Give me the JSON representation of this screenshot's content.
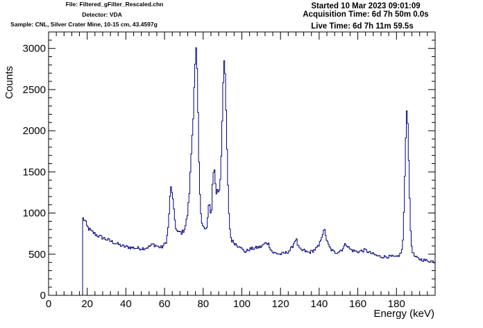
{
  "header": {
    "file": "File: Filtered_gFilter_Rescaled.chn",
    "detector": "Detector: VDA",
    "sample": "Sample: CNL, Silver Crater Mine, 10-15 cm, 43.4597g",
    "started": "Started 10 Mar 2023 09:01:09",
    "acquisition": "Acquisition Time: 6d 7h 50m 0.0s",
    "live": "Live Time: 6d 7h 11m 59.5s"
  },
  "chart_data": {
    "type": "line",
    "xlabel": "Energy (keV)",
    "ylabel": "Counts",
    "xlim": [
      0,
      200
    ],
    "ylim": [
      0,
      3200
    ],
    "xticks": [
      0,
      20,
      40,
      60,
      80,
      100,
      120,
      140,
      160,
      180
    ],
    "yticks": [
      0,
      500,
      1000,
      1500,
      2000,
      2500,
      3000
    ],
    "grid": false,
    "legend": "none",
    "line_color": "#000080",
    "series": [
      {
        "x": [
          17.6,
          17.6,
          18.0,
          19.0,
          20.0,
          22.0,
          25.0,
          28.0,
          30.0,
          33.0,
          36.0,
          38.0,
          40.0,
          43.0,
          45.0,
          48.0,
          50.0,
          52.0,
          54.0,
          56.0,
          58.0,
          59.0,
          60.0,
          61.0,
          61.8,
          62.5,
          63.2,
          64.0,
          65.0,
          66.0,
          67.0,
          68.0,
          69.0,
          70.0,
          71.0,
          72.0,
          73.0,
          74.0,
          74.8,
          75.5,
          76.0,
          76.5,
          77.0,
          77.5,
          78.0,
          78.5,
          79.0,
          79.5,
          80.0,
          81.0,
          82.0,
          82.5,
          83.0,
          83.5,
          84.0,
          84.5,
          85.0,
          85.5,
          86.0,
          86.5,
          87.0,
          87.5,
          88.0,
          88.5,
          89.0,
          89.5,
          90.0,
          90.5,
          91.0,
          91.5,
          92.0,
          92.5,
          93.0,
          93.5,
          94.0,
          94.5,
          95.0,
          96.0,
          97.0,
          98.0,
          99.0,
          100.0,
          101.0,
          102.0,
          104.0,
          106.0,
          108.0,
          110.0,
          111.0,
          112.0,
          113.0,
          114.0,
          115.0,
          116.0,
          118.0,
          120.0,
          122.0,
          124.0,
          126.0,
          127.0,
          128.0,
          128.5,
          129.0,
          130.0,
          131.0,
          132.0,
          134.0,
          136.0,
          138.0,
          140.0,
          141.0,
          142.0,
          143.0,
          143.5,
          144.0,
          145.0,
          146.0,
          147.0,
          148.0,
          150.0,
          152.0,
          153.0,
          154.0,
          155.0,
          156.0,
          158.0,
          160.0,
          162.0,
          164.0,
          166.0,
          168.0,
          170.0,
          172.0,
          174.0,
          176.0,
          178.0,
          180.0,
          181.0,
          182.0,
          183.0,
          183.5,
          184.0,
          184.5,
          185.0,
          185.5,
          186.0,
          186.5,
          187.0,
          187.5,
          188.0,
          189.0,
          190.0,
          191.0,
          192.0,
          194.0,
          196.0,
          198.0,
          200.0
        ],
        "y": [
          0,
          940,
          930,
          900,
          830,
          780,
          730,
          700,
          680,
          650,
          620,
          600,
          590,
          580,
          575,
          570,
          575,
          590,
          620,
          600,
          580,
          590,
          620,
          660,
          800,
          1050,
          1320,
          1250,
          980,
          800,
          760,
          770,
          760,
          790,
          860,
          1000,
          1300,
          1800,
          2150,
          2650,
          2850,
          3030,
          2600,
          2000,
          1450,
          1100,
          960,
          880,
          850,
          790,
          820,
          1000,
          1120,
          1060,
          960,
          1100,
          1450,
          1540,
          1500,
          1300,
          1220,
          1300,
          1250,
          1300,
          1480,
          1800,
          2300,
          2700,
          2850,
          2600,
          2100,
          1600,
          1200,
          920,
          760,
          680,
          660,
          640,
          620,
          600,
          610,
          560,
          540,
          530,
          560,
          570,
          580,
          590,
          610,
          630,
          640,
          620,
          560,
          520,
          510,
          500,
          510,
          530,
          580,
          640,
          690,
          660,
          600,
          560,
          540,
          550,
          520,
          530,
          560,
          600,
          700,
          760,
          790,
          720,
          660,
          600,
          560,
          540,
          520,
          530,
          560,
          600,
          630,
          590,
          560,
          540,
          530,
          540,
          550,
          520,
          500,
          480,
          470,
          470,
          470,
          470,
          460,
          480,
          500,
          560,
          720,
          1100,
          1600,
          2100,
          2280,
          2050,
          1500,
          1000,
          700,
          560,
          490,
          460,
          450,
          440,
          430,
          420,
          415,
          410
        ]
      }
    ]
  }
}
